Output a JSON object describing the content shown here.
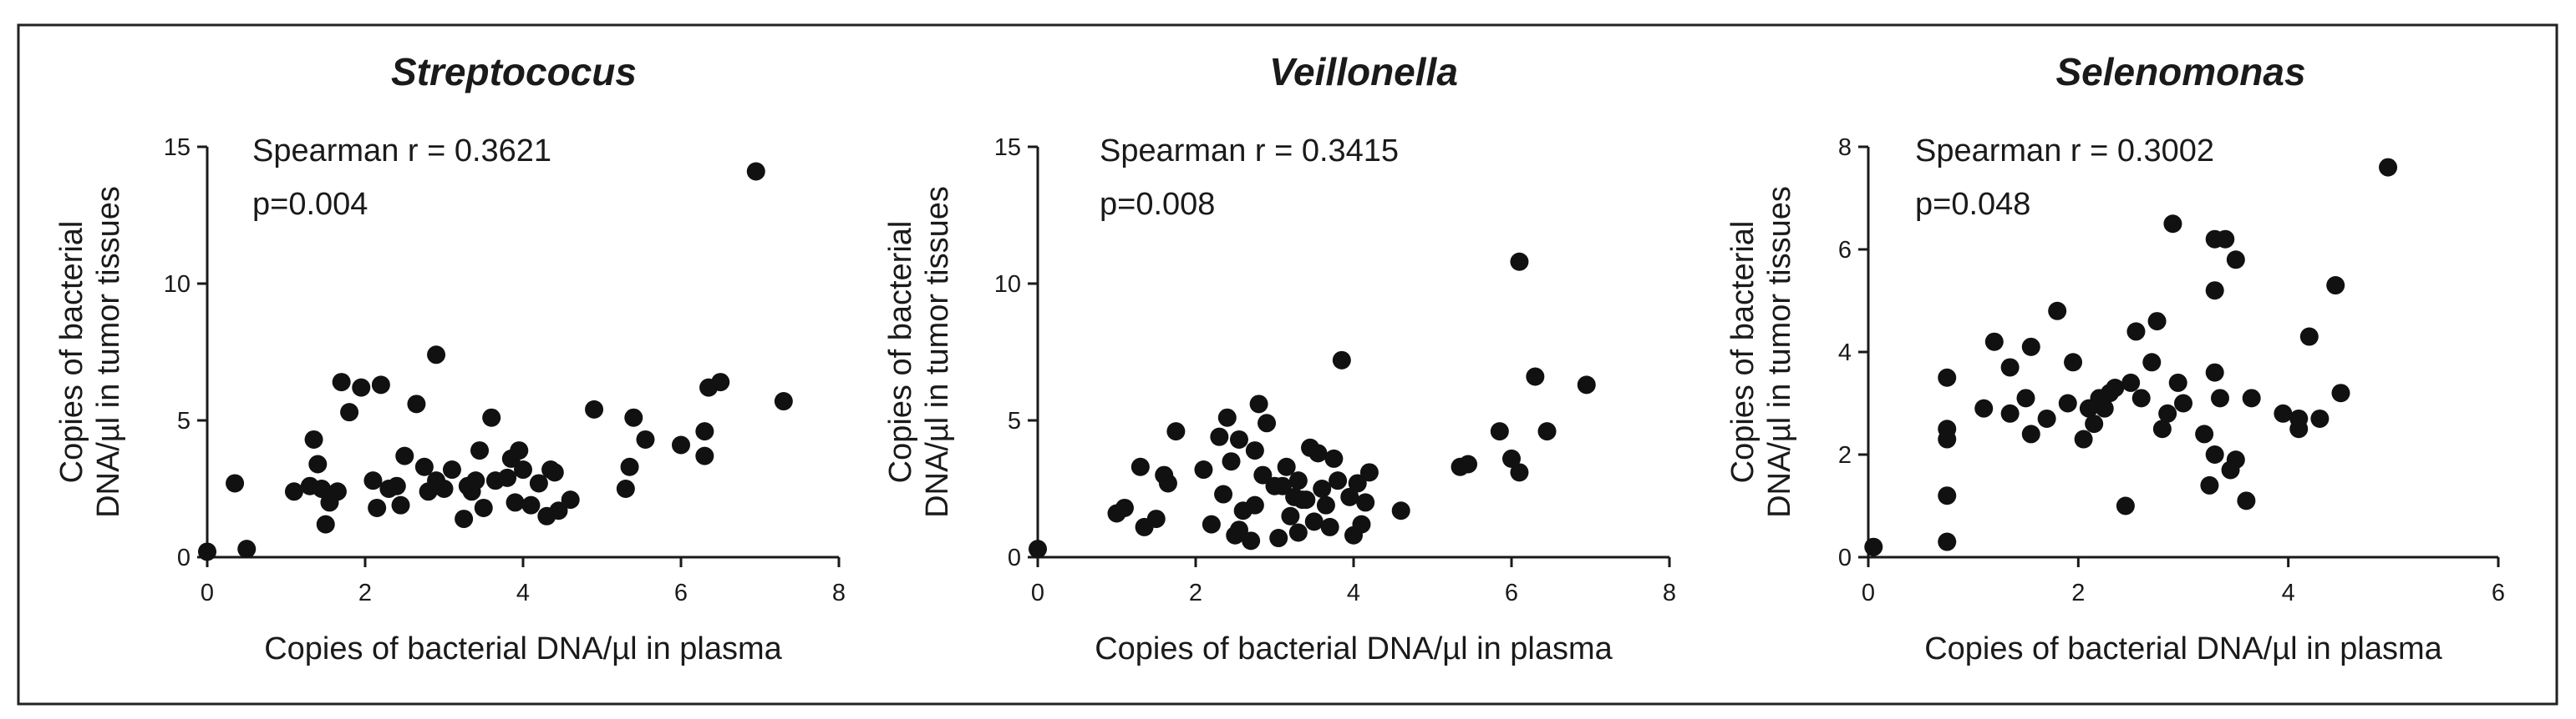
{
  "chart_data": [
    {
      "type": "scatter",
      "title": "Streptococus",
      "xlabel": "Copies of bacterial DNA/µl in plasma",
      "ylabel": [
        "Copies of bacterial",
        "DNA/µl in tumor tissues"
      ],
      "xlim": [
        0,
        8
      ],
      "ylim": [
        0,
        15
      ],
      "xticks": [
        0,
        2,
        4,
        6,
        8
      ],
      "yticks": [
        0,
        5,
        10,
        15
      ],
      "stats": {
        "spearman": "Spearman r = 0.3621",
        "p": "p=0.004"
      },
      "points": [
        [
          0.0,
          0.2
        ],
        [
          0.5,
          0.3
        ],
        [
          0.35,
          2.7
        ],
        [
          1.1,
          2.4
        ],
        [
          1.3,
          2.6
        ],
        [
          1.35,
          4.3
        ],
        [
          1.4,
          3.4
        ],
        [
          1.45,
          2.5
        ],
        [
          1.5,
          1.2
        ],
        [
          1.55,
          2.0
        ],
        [
          1.65,
          2.4
        ],
        [
          1.7,
          6.4
        ],
        [
          1.8,
          5.3
        ],
        [
          1.95,
          6.2
        ],
        [
          2.1,
          2.8
        ],
        [
          2.15,
          1.8
        ],
        [
          2.2,
          6.3
        ],
        [
          2.3,
          2.5
        ],
        [
          2.45,
          1.9
        ],
        [
          2.4,
          2.6
        ],
        [
          2.5,
          3.7
        ],
        [
          2.65,
          5.6
        ],
        [
          2.75,
          3.3
        ],
        [
          2.8,
          2.4
        ],
        [
          2.9,
          7.4
        ],
        [
          2.9,
          2.8
        ],
        [
          3.0,
          2.5
        ],
        [
          3.1,
          3.2
        ],
        [
          3.25,
          1.4
        ],
        [
          3.3,
          2.6
        ],
        [
          3.35,
          2.4
        ],
        [
          3.4,
          2.8
        ],
        [
          3.45,
          3.9
        ],
        [
          3.5,
          1.8
        ],
        [
          3.6,
          5.1
        ],
        [
          3.65,
          2.8
        ],
        [
          3.8,
          2.9
        ],
        [
          3.85,
          3.6
        ],
        [
          3.9,
          2.0
        ],
        [
          3.95,
          3.9
        ],
        [
          4.0,
          3.2
        ],
        [
          4.1,
          1.9
        ],
        [
          4.2,
          2.7
        ],
        [
          4.3,
          1.5
        ],
        [
          4.35,
          3.2
        ],
        [
          4.4,
          3.1
        ],
        [
          4.45,
          1.7
        ],
        [
          4.6,
          2.1
        ],
        [
          4.9,
          5.4
        ],
        [
          5.3,
          2.5
        ],
        [
          5.35,
          3.3
        ],
        [
          5.4,
          5.1
        ],
        [
          5.55,
          4.3
        ],
        [
          6.0,
          4.1
        ],
        [
          6.3,
          3.7
        ],
        [
          6.3,
          4.6
        ],
        [
          6.35,
          6.2
        ],
        [
          6.5,
          6.4
        ],
        [
          6.95,
          14.1
        ],
        [
          7.3,
          5.7
        ]
      ]
    },
    {
      "type": "scatter",
      "title": "Veillonella",
      "xlabel": "Copies of bacterial DNA/µl in plasma",
      "ylabel": [
        "Copies of bacterial",
        "DNA/µl in tumor tissues"
      ],
      "xlim": [
        0,
        8
      ],
      "ylim": [
        0,
        15
      ],
      "xticks": [
        0,
        2,
        4,
        6,
        8
      ],
      "yticks": [
        0,
        5,
        10,
        15
      ],
      "stats": {
        "spearman": "Spearman r = 0.3415",
        "p": "p=0.008"
      },
      "points": [
        [
          0.0,
          0.3
        ],
        [
          1.0,
          1.6
        ],
        [
          1.1,
          1.8
        ],
        [
          1.3,
          3.3
        ],
        [
          1.35,
          1.1
        ],
        [
          1.5,
          1.4
        ],
        [
          1.6,
          3.0
        ],
        [
          1.65,
          2.7
        ],
        [
          1.75,
          4.6
        ],
        [
          2.1,
          3.2
        ],
        [
          2.2,
          1.2
        ],
        [
          2.3,
          4.4
        ],
        [
          2.35,
          2.3
        ],
        [
          2.4,
          5.1
        ],
        [
          2.45,
          3.5
        ],
        [
          2.5,
          0.8
        ],
        [
          2.55,
          1.0
        ],
        [
          2.55,
          4.3
        ],
        [
          2.6,
          1.7
        ],
        [
          2.7,
          0.6
        ],
        [
          2.75,
          1.9
        ],
        [
          2.75,
          3.9
        ],
        [
          2.8,
          5.6
        ],
        [
          2.85,
          3.0
        ],
        [
          2.9,
          4.9
        ],
        [
          3.0,
          2.6
        ],
        [
          3.05,
          0.7
        ],
        [
          3.1,
          2.6
        ],
        [
          3.15,
          3.3
        ],
        [
          3.2,
          1.5
        ],
        [
          3.25,
          2.2
        ],
        [
          3.3,
          0.9
        ],
        [
          3.3,
          2.8
        ],
        [
          3.35,
          2.1
        ],
        [
          3.4,
          2.1
        ],
        [
          3.45,
          4.0
        ],
        [
          3.5,
          1.3
        ],
        [
          3.55,
          3.8
        ],
        [
          3.6,
          2.5
        ],
        [
          3.65,
          1.9
        ],
        [
          3.7,
          1.1
        ],
        [
          3.75,
          3.6
        ],
        [
          3.8,
          2.8
        ],
        [
          3.85,
          7.2
        ],
        [
          3.95,
          2.2
        ],
        [
          4.0,
          0.8
        ],
        [
          4.05,
          2.7
        ],
        [
          4.1,
          1.2
        ],
        [
          4.15,
          2.0
        ],
        [
          4.2,
          3.1
        ],
        [
          4.6,
          1.7
        ],
        [
          5.35,
          3.3
        ],
        [
          5.45,
          3.4
        ],
        [
          5.85,
          4.6
        ],
        [
          6.0,
          3.6
        ],
        [
          6.1,
          3.1
        ],
        [
          6.1,
          10.8
        ],
        [
          6.3,
          6.6
        ],
        [
          6.45,
          4.6
        ],
        [
          6.95,
          6.3
        ]
      ]
    },
    {
      "type": "scatter",
      "title": "Selenomonas",
      "xlabel": "Copies of bacterial DNA/µl in plasma",
      "ylabel": [
        "Copies of bacterial",
        "DNA/µl in tumor tissues"
      ],
      "xlim": [
        0,
        6
      ],
      "ylim": [
        0,
        8
      ],
      "xticks": [
        0,
        2,
        4,
        6
      ],
      "yticks": [
        0,
        2,
        4,
        6,
        8
      ],
      "stats": {
        "spearman": "Spearman r = 0.3002",
        "p": "p=0.048"
      },
      "points": [
        [
          0.05,
          0.2
        ],
        [
          0.75,
          3.5
        ],
        [
          0.75,
          2.5
        ],
        [
          0.75,
          2.3
        ],
        [
          0.75,
          1.2
        ],
        [
          0.75,
          0.3
        ],
        [
          1.1,
          2.9
        ],
        [
          1.2,
          4.2
        ],
        [
          1.35,
          3.7
        ],
        [
          1.35,
          2.8
        ],
        [
          1.5,
          3.1
        ],
        [
          1.55,
          2.4
        ],
        [
          1.55,
          4.1
        ],
        [
          1.7,
          2.7
        ],
        [
          1.8,
          4.8
        ],
        [
          1.9,
          3.0
        ],
        [
          1.95,
          3.8
        ],
        [
          2.05,
          2.3
        ],
        [
          2.1,
          2.9
        ],
        [
          2.15,
          2.6
        ],
        [
          2.2,
          3.1
        ],
        [
          2.25,
          2.9
        ],
        [
          2.3,
          3.2
        ],
        [
          2.35,
          3.3
        ],
        [
          2.45,
          1.0
        ],
        [
          2.5,
          3.4
        ],
        [
          2.55,
          4.4
        ],
        [
          2.6,
          3.1
        ],
        [
          2.7,
          3.8
        ],
        [
          2.75,
          4.6
        ],
        [
          2.8,
          2.5
        ],
        [
          2.85,
          2.8
        ],
        [
          2.9,
          6.5
        ],
        [
          2.95,
          3.4
        ],
        [
          3.0,
          3.0
        ],
        [
          3.2,
          2.4
        ],
        [
          3.25,
          1.4
        ],
        [
          3.3,
          6.2
        ],
        [
          3.3,
          5.2
        ],
        [
          3.3,
          3.6
        ],
        [
          3.3,
          2.0
        ],
        [
          3.35,
          3.1
        ],
        [
          3.4,
          6.2
        ],
        [
          3.45,
          1.7
        ],
        [
          3.5,
          5.8
        ],
        [
          3.5,
          1.9
        ],
        [
          3.6,
          1.1
        ],
        [
          3.65,
          3.1
        ],
        [
          3.95,
          2.8
        ],
        [
          4.1,
          2.5
        ],
        [
          4.1,
          2.7
        ],
        [
          4.2,
          4.3
        ],
        [
          4.3,
          2.7
        ],
        [
          4.45,
          5.3
        ],
        [
          4.5,
          3.2
        ],
        [
          4.95,
          7.6
        ]
      ]
    }
  ]
}
